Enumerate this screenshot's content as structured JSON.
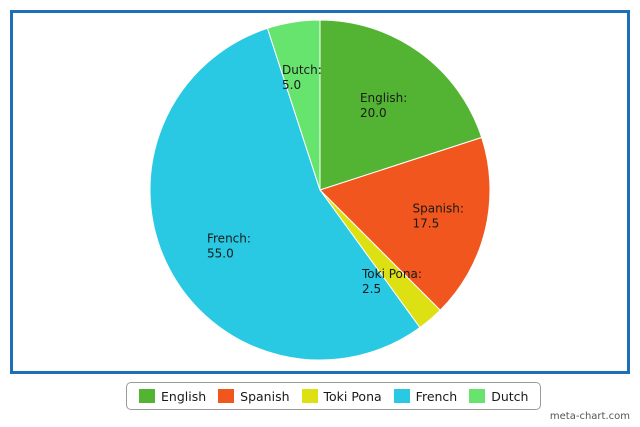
{
  "chart_data": {
    "type": "pie",
    "slices": [
      {
        "label": "English",
        "value": 20.0,
        "display": "20.0",
        "color": "#53b434"
      },
      {
        "label": "Spanish",
        "value": 17.5,
        "display": "17.5",
        "color": "#f0561d"
      },
      {
        "label": "Toki Pona",
        "value": 2.5,
        "display": "2.5",
        "color": "#dde114"
      },
      {
        "label": "French",
        "value": 55.0,
        "display": "55.0",
        "color": "#29c9e3"
      },
      {
        "label": "Dutch",
        "value": 5.0,
        "display": "5.0",
        "color": "#67e46e"
      }
    ],
    "start_angle_deg": 0,
    "direction": "clockwise",
    "legend_position": "bottom"
  },
  "frame_color": "#1f6fb8",
  "watermark": "meta-chart.com"
}
